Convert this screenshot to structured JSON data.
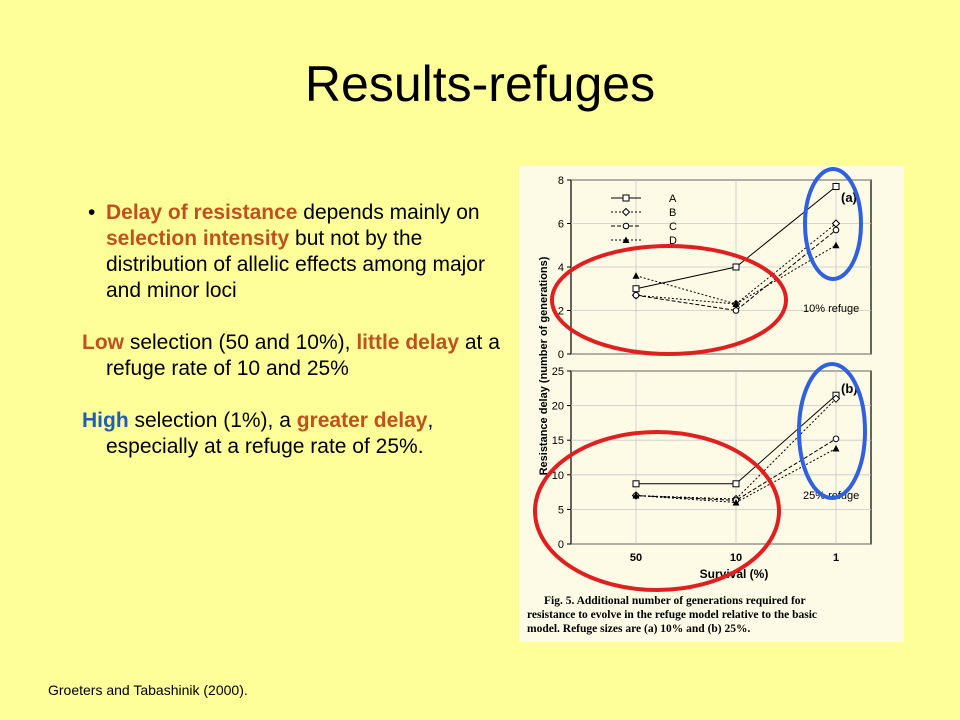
{
  "slide": {
    "title": "Results-refuges",
    "citation": "Groeters and Tabashinik (2000).",
    "bullet_symbol": "•",
    "paragraphs": {
      "p1": {
        "t1": "Delay of resistance",
        "t2": " depends mainly on ",
        "t3": "selection intensity",
        "t4": " but not by the distribution of allelic effects among major and minor loci"
      },
      "p2": {
        "t1": "Low",
        "t2": " selection (50 and 10%), ",
        "t3": "little delay",
        "t4": " at a refuge rate of 10 and 25%"
      },
      "p3": {
        "t1": "High",
        "t2": " selection (1%), a ",
        "t3": "greater delay",
        "t4": ", especially at a refuge rate of 25%."
      }
    },
    "colors": {
      "background": "#ffff99",
      "highlight_orange": "#c0501e",
      "highlight_blue": "#1f5eb0",
      "ellipse_red": "#e02020",
      "ellipse_blue": "#3060e0"
    }
  },
  "chart_data": [
    {
      "type": "line",
      "panel_label": "(a)",
      "annotation": "10% refuge",
      "x": [
        "50",
        "10",
        "1"
      ],
      "ylim": [
        0,
        8
      ],
      "yticks": [
        "0",
        "2",
        "4",
        "6",
        "8"
      ],
      "ylabel": "Resistance delay (number of generations)",
      "legend_position": "top-left",
      "series": [
        {
          "name": "A",
          "marker": "square",
          "dash": "solid",
          "values": [
            3.0,
            4.0,
            7.7
          ]
        },
        {
          "name": "B",
          "marker": "diamond",
          "dash": "dotted",
          "values": [
            2.7,
            2.3,
            6.0
          ]
        },
        {
          "name": "C",
          "marker": "circle",
          "dash": "dashed",
          "values": [
            2.7,
            2.0,
            5.7
          ]
        },
        {
          "name": "D",
          "marker": "triangle",
          "dash": "dotted",
          "values": [
            3.6,
            2.3,
            5.0
          ]
        }
      ]
    },
    {
      "type": "line",
      "panel_label": "(b)",
      "annotation": "25% refuge",
      "x": [
        "50",
        "10",
        "1"
      ],
      "xlabel": "Survival (%)",
      "ylim": [
        0,
        25
      ],
      "yticks": [
        "0",
        "5",
        "10",
        "15",
        "20",
        "25"
      ],
      "series": [
        {
          "name": "A",
          "marker": "square",
          "dash": "solid",
          "values": [
            8.7,
            8.7,
            21.5
          ]
        },
        {
          "name": "B",
          "marker": "diamond",
          "dash": "dotted",
          "values": [
            7.0,
            6.5,
            21.0
          ]
        },
        {
          "name": "C",
          "marker": "circle",
          "dash": "dashed",
          "values": [
            7.0,
            6.3,
            15.2
          ]
        },
        {
          "name": "D",
          "marker": "triangle",
          "dash": "dotted",
          "values": [
            7.0,
            6.0,
            13.8
          ]
        }
      ]
    }
  ],
  "figure_caption": {
    "line1": "Fig. 5.   Additional number of generations required for",
    "line2": "resistance to evolve in the refuge model relative to the basic",
    "line3": "model. Refuge sizes are (a) 10% and (b) 25%."
  }
}
